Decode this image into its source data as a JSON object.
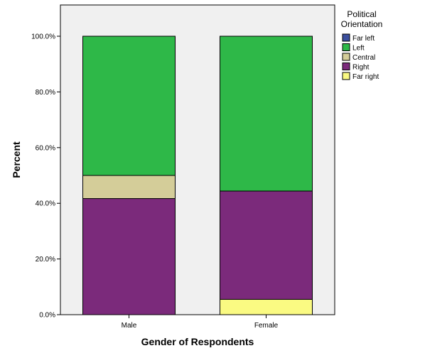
{
  "chart_data": {
    "type": "bar",
    "stacked": true,
    "categories": [
      "Male",
      "Female"
    ],
    "series": [
      {
        "name": "Far left",
        "color": "#3b4f9e",
        "values": [
          0,
          0
        ]
      },
      {
        "name": "Left",
        "color": "#2eb848",
        "values": [
          50.0,
          55.6
        ]
      },
      {
        "name": "Central",
        "color": "#d4cd99",
        "values": [
          8.3,
          0
        ]
      },
      {
        "name": "Right",
        "color": "#7b2a7b",
        "values": [
          41.7,
          38.9
        ]
      },
      {
        "name": "Far right",
        "color": "#fafa82",
        "values": [
          0,
          5.5
        ]
      }
    ],
    "stack_order_bottom_to_top": [
      "Far right",
      "Right",
      "Central",
      "Left",
      "Far left"
    ],
    "xlabel": "Gender of Respondents",
    "ylabel": "Percent",
    "ylim": [
      0,
      100
    ],
    "yticks": [
      "0.0%",
      "20.0%",
      "40.0%",
      "60.0%",
      "80.0%",
      "100.0%"
    ],
    "legend": {
      "title_lines": [
        "Political",
        "Orientation"
      ],
      "placement": "right"
    },
    "plot_background": "#f0f0f0",
    "grid": false
  }
}
